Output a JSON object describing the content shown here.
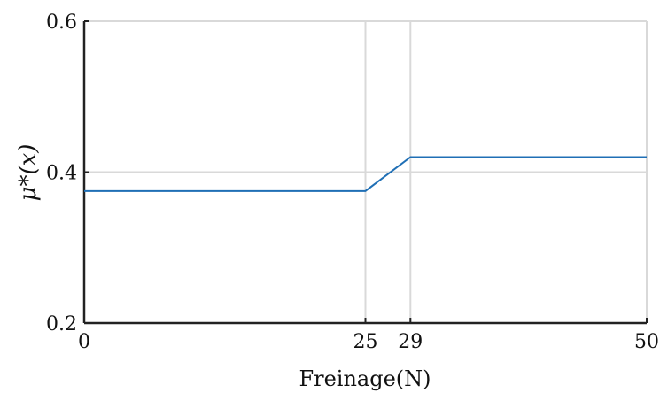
{
  "chart_data": {
    "type": "line",
    "title": "",
    "xlabel": "Freinage(N)",
    "ylabel": "μ*(x)",
    "xlim": [
      0,
      50
    ],
    "ylim": [
      0.2,
      0.6
    ],
    "xticks": [
      0,
      25,
      29,
      50
    ],
    "yticks": [
      0.2,
      0.4,
      0.6
    ],
    "xtick_labels": [
      "0",
      "25",
      "29",
      "50"
    ],
    "ytick_labels": [
      "0.2",
      "0.4",
      "0.6"
    ],
    "grid": true,
    "legend": "none",
    "series": [
      {
        "color": "#1f6fb5",
        "x": [
          0,
          25,
          29,
          50
        ],
        "y": [
          0.375,
          0.375,
          0.42,
          0.42
        ]
      }
    ]
  }
}
